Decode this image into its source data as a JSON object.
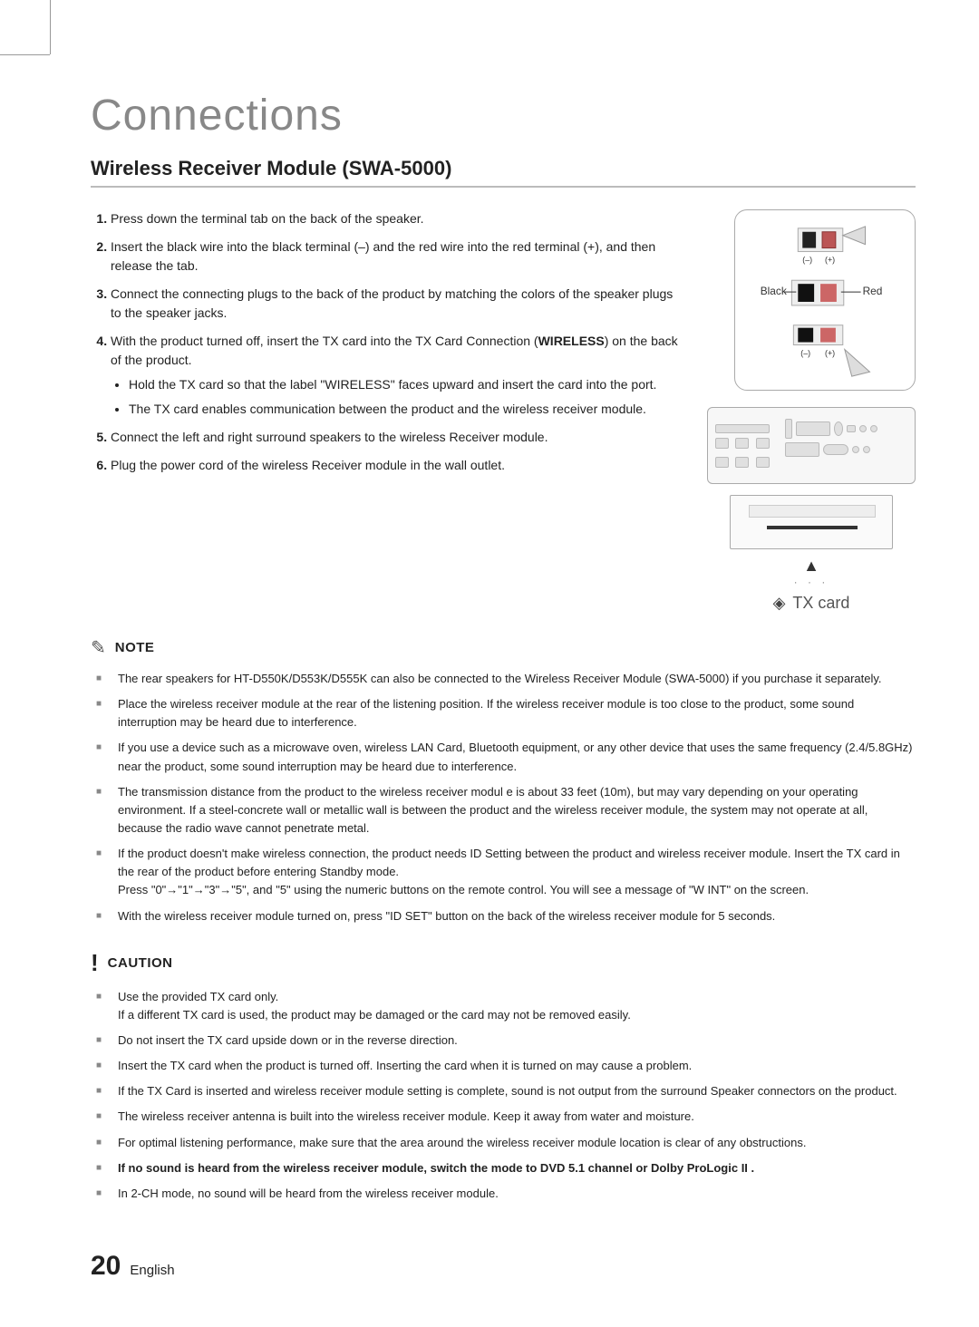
{
  "title": "Connections",
  "subtitle": "Wireless Receiver Module (SWA-5000)",
  "steps": [
    "Press down the terminal tab on the back of the speaker.",
    "Insert the black wire into the black terminal (–) and the red wire into the red terminal (+), and then release the tab.",
    "Connect the connecting plugs to the back of the product by matching the colors of the speaker plugs to the speaker jacks.",
    "With the product turned off, insert the TX card into the TX Card Connection (WIRELESS) on the back of the product.",
    "Connect the left and right surround speakers to the wireless Receiver module.",
    "Plug the power cord of the wireless Receiver module in the wall outlet."
  ],
  "step4_bold": "WIRELESS",
  "step4_sub": [
    "Hold the TX card so that the label \"WIRELESS\" faces upward and insert the card into the port.",
    "The TX card enables communication between the product and the wireless receiver module."
  ],
  "fig1": {
    "black": "Black",
    "red": "Red",
    "minus": "(–)",
    "plus": "(+)"
  },
  "fig2": {
    "tx": "TX card"
  },
  "note_heading": "NOTE",
  "note_items": [
    "The rear speakers for HT-D550K/D553K/D555K can also be connected to the Wireless Receiver Module (SWA-5000) if you purchase it separately.",
    "Place the wireless receiver module at the rear of the listening position. If the wireless receiver module is too close to the product, some sound interruption may be heard due to interference.",
    "If you use a device such as a microwave oven, wireless LAN Card, Bluetooth equipment, or any other device that uses the same frequency (2.4/5.8GHz) near the product, some sound interruption may be heard due to interference.",
    "The transmission distance from the product to the wireless receiver modul e is about 33 feet (10m), but may vary depending on your operating environment. If a steel-concrete wall or metallic wall is between the product and the wireless receiver module, the system may not operate at all, because the radio wave cannot penetrate metal.",
    "If the product doesn't make wireless connection, the product needs ID Setting between the product and wireless receiver module. Insert the TX card in the rear of the product before entering Standby mode.\nPress  \"0\"→\"1\"→\"3\"→\"5\", and \"5\" using the numeric buttons on the remote control. You will see a message of  \"W INT\" on the screen.",
    "With the wireless receiver module turned on, press \"ID SET\" button on the back of the wireless receiver module for 5 seconds."
  ],
  "caution_heading": "CAUTION",
  "caution_items": [
    "Use the provided TX card only.\nIf a different TX card is used, the product may be damaged or the card may not be removed easily.",
    "Do not insert the TX card upside down or in the reverse direction.",
    "Insert the TX card when the product is turned off. Inserting the card when it is turned on may cause a problem.",
    "If the TX Card is inserted and wireless receiver module setting is complete, sound is not output from the surround Speaker connectors on the product.",
    "The wireless receiver antenna is built into the wireless receiver module. Keep it away from water and moisture.",
    "For optimal listening performance, make sure that the area around the wireless receiver module location is clear of any obstructions.",
    "If no sound is heard from the wireless receiver module, switch the mode to DVD 5.1 channel or Dolby ProLogic II .",
    "In 2-CH mode, no sound will be heard from the wireless receiver module."
  ],
  "caution_bold_index": 6,
  "page_number": "20",
  "language": "English",
  "colors": {
    "title": "#888888",
    "text": "#222222",
    "bullet": "#888888",
    "terminal_black": "#000000",
    "terminal_red": "#b33a3a"
  }
}
